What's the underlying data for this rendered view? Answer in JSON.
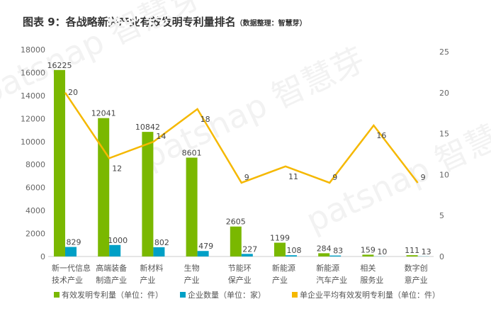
{
  "chart_data": {
    "type": "bar",
    "title": "图表 9：各战略新兴产业有效发明专利量排名",
    "subtitle": "（数据整理：智慧芽）",
    "categories": [
      [
        "新一代信息",
        "技术产业"
      ],
      [
        "高端装备",
        "制造产业"
      ],
      [
        "新材料",
        "产业"
      ],
      [
        "生物",
        "产业"
      ],
      [
        "节能环",
        "保产业"
      ],
      [
        "新能源",
        "产业"
      ],
      [
        "新能源",
        "汽车产业"
      ],
      [
        "相关",
        "服务业"
      ],
      [
        "数字创",
        "意产业"
      ]
    ],
    "series": [
      {
        "name": "有效发明专利量（单位：件）",
        "type": "bar",
        "axis": "left",
        "color": "#7ab800",
        "values": [
          16225,
          12041,
          10842,
          8601,
          2605,
          1199,
          284,
          159,
          111
        ]
      },
      {
        "name": "企业数量（单位：家）",
        "type": "bar",
        "axis": "left",
        "color": "#00a0c6",
        "values": [
          829,
          1000,
          802,
          479,
          227,
          108,
          83,
          10,
          13
        ]
      },
      {
        "name": "单企业平均有效发明专利量（单位：件）",
        "type": "line",
        "axis": "right",
        "color": "#f5b800",
        "values": [
          20,
          12,
          14,
          18,
          9,
          11,
          9,
          16,
          9
        ]
      }
    ],
    "left_axis": {
      "ylim": [
        0,
        18000
      ],
      "ticks": [
        0,
        2000,
        4000,
        6000,
        8000,
        10000,
        12000,
        14000,
        16000,
        18000
      ]
    },
    "right_axis": {
      "ylim": [
        0,
        25
      ],
      "ticks": [
        0,
        5,
        10,
        15,
        20,
        25
      ]
    },
    "grid": false,
    "legend": "bottom",
    "watermark": "patsnap 智慧芽"
  }
}
